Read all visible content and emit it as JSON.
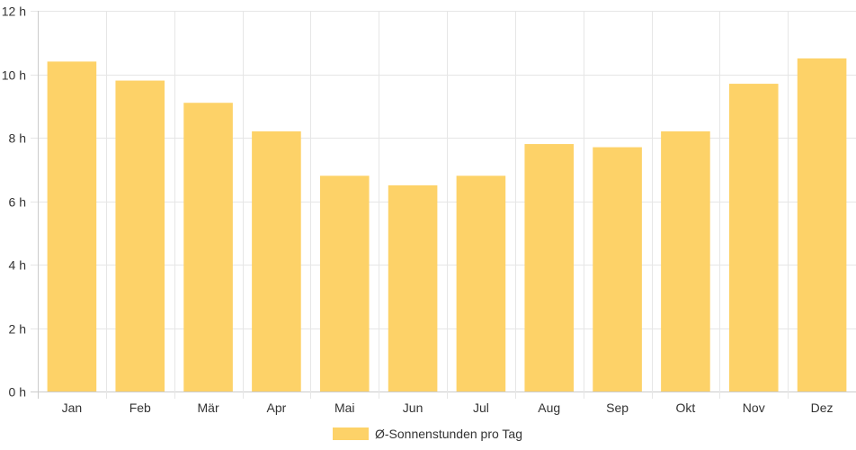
{
  "chart_data": {
    "type": "bar",
    "categories": [
      "Jan",
      "Feb",
      "Mär",
      "Apr",
      "Mai",
      "Jun",
      "Jul",
      "Aug",
      "Sep",
      "Okt",
      "Nov",
      "Dez"
    ],
    "series": [
      {
        "name": "Ø-Sonnenstunden pro Tag",
        "values": [
          10.4,
          9.8,
          9.1,
          8.2,
          6.8,
          6.5,
          6.8,
          7.8,
          7.7,
          8.2,
          9.7,
          10.5
        ],
        "color": "#fdd268"
      }
    ],
    "ylim": [
      0,
      12
    ],
    "yticks": [
      0,
      2,
      4,
      6,
      8,
      10,
      12
    ],
    "ytick_unit": "h",
    "grid": true,
    "legend_position": "bottom"
  }
}
